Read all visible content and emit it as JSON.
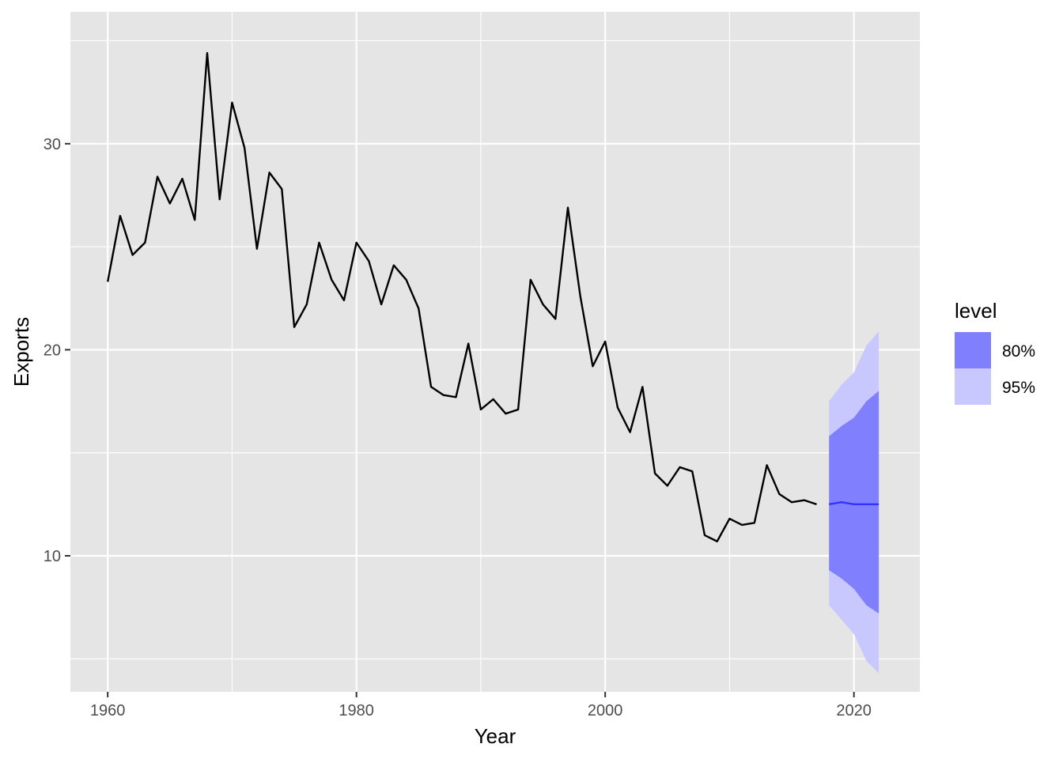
{
  "chart_data": {
    "type": "line",
    "title": "",
    "xlabel": "Year",
    "ylabel": "Exports",
    "xlim": [
      1957,
      2025.3
    ],
    "ylim": [
      3.4,
      36.4
    ],
    "x_ticks": [
      1960,
      1980,
      2000,
      2020
    ],
    "y_ticks": [
      10,
      20,
      30
    ],
    "x_tick_labels": [
      "1960",
      "1980",
      "2000",
      "2020"
    ],
    "y_tick_labels": [
      "10",
      "20",
      "30"
    ],
    "grid": true,
    "legend": {
      "title": "level",
      "position": "right",
      "entries": [
        {
          "label": "80%",
          "color": "#8080ff"
        },
        {
          "label": "95%",
          "color": "#c8c8ff"
        }
      ]
    },
    "series": [
      {
        "color": "#000000",
        "x": [
          1960,
          1961,
          1962,
          1963,
          1964,
          1965,
          1966,
          1967,
          1968,
          1969,
          1970,
          1971,
          1972,
          1973,
          1974,
          1975,
          1976,
          1977,
          1978,
          1979,
          1980,
          1981,
          1982,
          1983,
          1984,
          1985,
          1986,
          1987,
          1988,
          1989,
          1990,
          1991,
          1992,
          1993,
          1994,
          1995,
          1996,
          1997,
          1998,
          1999,
          2000,
          2001,
          2002,
          2003,
          2004,
          2005,
          2006,
          2007,
          2008,
          2009,
          2010,
          2011,
          2012,
          2013,
          2014,
          2015,
          2016,
          2017
        ],
        "values": [
          23.3,
          26.5,
          24.6,
          25.2,
          28.4,
          27.1,
          28.3,
          26.3,
          34.4,
          27.3,
          32.0,
          29.8,
          24.9,
          28.6,
          27.8,
          21.1,
          22.2,
          25.2,
          23.4,
          22.4,
          25.2,
          24.3,
          22.2,
          24.1,
          23.4,
          22.0,
          18.2,
          17.8,
          17.7,
          20.3,
          17.1,
          17.6,
          16.9,
          17.1,
          23.4,
          22.2,
          21.5,
          26.9,
          22.6,
          19.2,
          20.4,
          17.2,
          16.0,
          18.2,
          14.0,
          13.4,
          14.3,
          14.1,
          11.0,
          10.7,
          11.8,
          11.5,
          11.6,
          14.4,
          13.0,
          12.6,
          12.7,
          12.5
        ]
      }
    ],
    "forecast": {
      "color": "#3333ff",
      "x": [
        2018,
        2019,
        2020,
        2021,
        2022
      ],
      "mean": [
        12.5,
        12.6,
        12.5,
        12.5,
        12.5
      ],
      "lo80": [
        9.3,
        8.9,
        8.4,
        7.6,
        7.2
      ],
      "hi80": [
        15.8,
        16.3,
        16.7,
        17.5,
        18.0
      ],
      "lo95": [
        7.6,
        6.9,
        6.2,
        4.9,
        4.3
      ],
      "hi95": [
        17.5,
        18.3,
        18.9,
        20.2,
        20.9
      ]
    }
  },
  "colors": {
    "panel": "#e5e5e5",
    "grid": "#ffffff",
    "band80": "#8080ff",
    "band95": "#c8c8ff",
    "mean_line": "#3333ff",
    "history_line": "#000000"
  }
}
